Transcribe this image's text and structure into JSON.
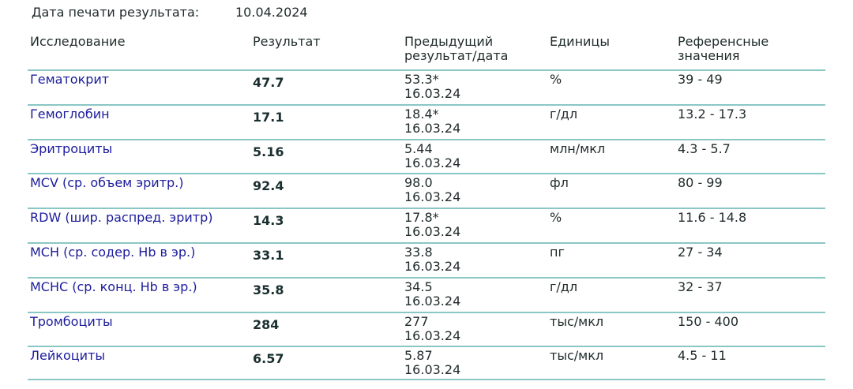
{
  "print_date": {
    "label": "Дата печати результата:",
    "value": "10.04.2024"
  },
  "headers": {
    "name": "Исследование",
    "result": "Результат",
    "prev_line1": "Предыдущий",
    "prev_line2": "результат/дата",
    "units": "Единицы",
    "ref_line1": "Референсные",
    "ref_line2": "значения"
  },
  "rows": [
    {
      "name": "Гематокрит",
      "result": "47.7",
      "prev": "53.3*",
      "prev_date": "16.03.24",
      "units": "%",
      "ref": "39 - 49"
    },
    {
      "name": "Гемоглобин",
      "result": "17.1",
      "prev": "18.4*",
      "prev_date": "16.03.24",
      "units": "г/дл",
      "ref": "13.2 - 17.3"
    },
    {
      "name": "Эритроциты",
      "result": "5.16",
      "prev": "5.44",
      "prev_date": "16.03.24",
      "units": "млн/мкл",
      "ref": "4.3 - 5.7"
    },
    {
      "name": "MCV (ср. объем эритр.)",
      "result": "92.4",
      "prev": "98.0",
      "prev_date": "16.03.24",
      "units": "фл",
      "ref": "80 - 99"
    },
    {
      "name": "RDW (шир. распред. эритр)",
      "result": "14.3",
      "prev": "17.8*",
      "prev_date": "16.03.24",
      "units": "%",
      "ref": "11.6 - 14.8"
    },
    {
      "name": "MCH (ср. содер. Hb в эр.)",
      "result": "33.1",
      "prev": "33.8",
      "prev_date": "16.03.24",
      "units": "пг",
      "ref": "27 - 34"
    },
    {
      "name": "MCHC (ср. конц. Hb в эр.)",
      "result": "35.8",
      "prev": "34.5",
      "prev_date": "16.03.24",
      "units": "г/дл",
      "ref": "32 - 37"
    },
    {
      "name": "Тромбоциты",
      "result": "284",
      "prev": "277",
      "prev_date": "16.03.24",
      "units": "тыс/мкл",
      "ref": "150 - 400"
    },
    {
      "name": "Лейкоциты",
      "result": "6.57",
      "prev": "5.87",
      "prev_date": "16.03.24",
      "units": "тыс/мкл",
      "ref": "4.5 - 11"
    }
  ],
  "colors": {
    "rule": "#8ac7c4",
    "name_text": "#1c1c9c",
    "body_text": "#1f2a2a"
  }
}
